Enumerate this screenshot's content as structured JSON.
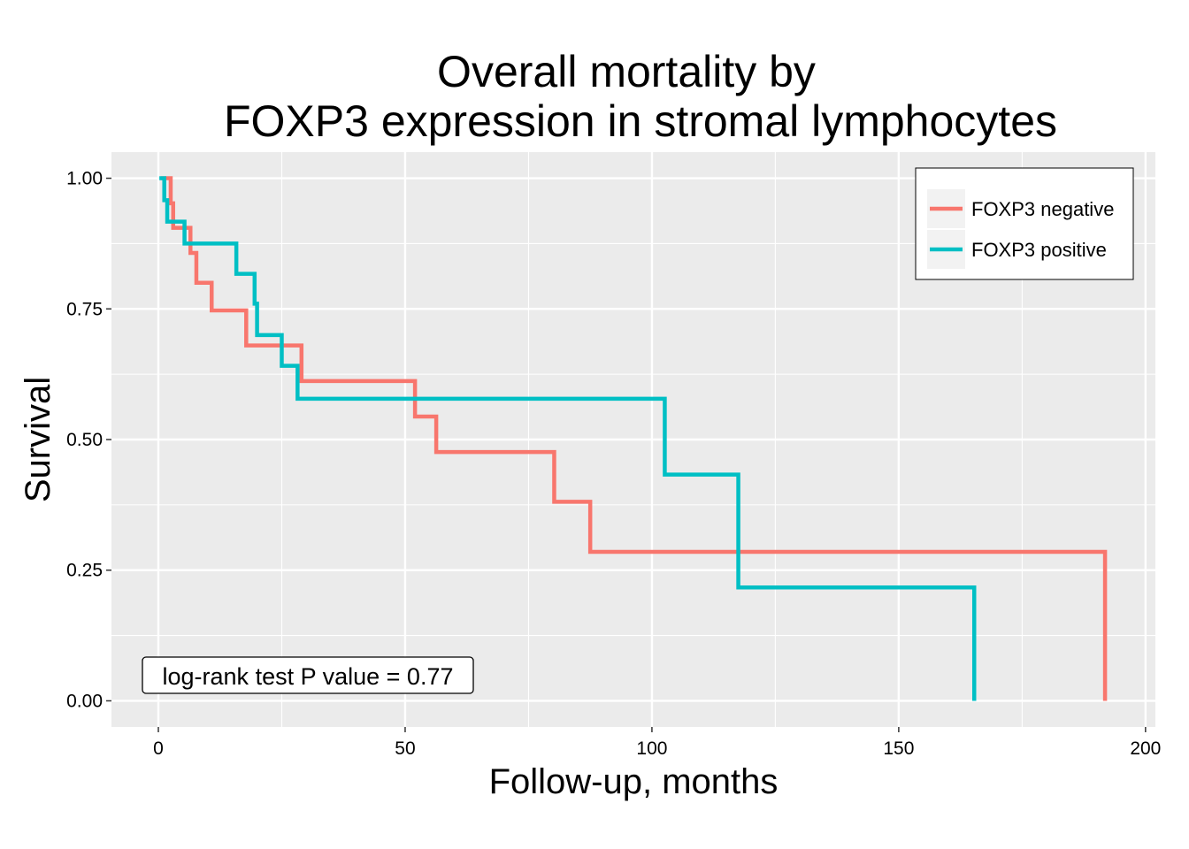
{
  "chart_data": {
    "type": "line",
    "step": true,
    "title_lines": [
      "Overall mortality by",
      "FOXP3 expression in stromal lymphocytes"
    ],
    "xlabel": "Follow-up, months",
    "ylabel": "Survival",
    "xlim": [
      -9.5,
      202
    ],
    "ylim": [
      -0.05,
      1.05
    ],
    "x_ticks": [
      0,
      50,
      100,
      150,
      200
    ],
    "x_tick_labels": [
      "0",
      "50",
      "100",
      "150",
      "200"
    ],
    "y_ticks": [
      0,
      0.25,
      0.5,
      0.75,
      1.0
    ],
    "y_tick_labels": [
      "0.00",
      "0.25",
      "0.50",
      "0.75",
      "1.00"
    ],
    "grid": true,
    "panel_background": "#EBEBEB",
    "legend_position": "top-right",
    "annotation": "log-rank test P value = 0.77",
    "series": [
      {
        "name": "FOXP3 negative",
        "color": "#F8766D",
        "points": [
          [
            0.5,
            1.0
          ],
          [
            2.5,
            1.0
          ],
          [
            2.5,
            0.952
          ],
          [
            3.0,
            0.952
          ],
          [
            3.0,
            0.905
          ],
          [
            6.5,
            0.905
          ],
          [
            6.5,
            0.857
          ],
          [
            7.7,
            0.857
          ],
          [
            7.7,
            0.8
          ],
          [
            10.8,
            0.8
          ],
          [
            10.8,
            0.747
          ],
          [
            17.8,
            0.747
          ],
          [
            17.8,
            0.68
          ],
          [
            29.0,
            0.68
          ],
          [
            29.0,
            0.612
          ],
          [
            52.0,
            0.612
          ],
          [
            52.0,
            0.544
          ],
          [
            56.3,
            0.544
          ],
          [
            56.3,
            0.476
          ],
          [
            80.2,
            0.476
          ],
          [
            80.2,
            0.381
          ],
          [
            87.5,
            0.381
          ],
          [
            87.5,
            0.285
          ],
          [
            191.8,
            0.285
          ],
          [
            191.8,
            0.0
          ]
        ]
      },
      {
        "name": "FOXP3 positive",
        "color": "#00BFC4",
        "points": [
          [
            0.2,
            1.0
          ],
          [
            1.2,
            1.0
          ],
          [
            1.2,
            0.958
          ],
          [
            1.8,
            0.958
          ],
          [
            1.8,
            0.917
          ],
          [
            5.3,
            0.917
          ],
          [
            5.3,
            0.875
          ],
          [
            15.8,
            0.875
          ],
          [
            15.8,
            0.817
          ],
          [
            19.5,
            0.817
          ],
          [
            19.5,
            0.76
          ],
          [
            20.0,
            0.76
          ],
          [
            20.0,
            0.7
          ],
          [
            25.0,
            0.7
          ],
          [
            25.0,
            0.641
          ],
          [
            28.2,
            0.641
          ],
          [
            28.2,
            0.578
          ],
          [
            102.6,
            0.578
          ],
          [
            102.6,
            0.433
          ],
          [
            117.5,
            0.433
          ],
          [
            117.5,
            0.217
          ],
          [
            165.3,
            0.217
          ],
          [
            165.3,
            0.0
          ]
        ]
      }
    ]
  }
}
